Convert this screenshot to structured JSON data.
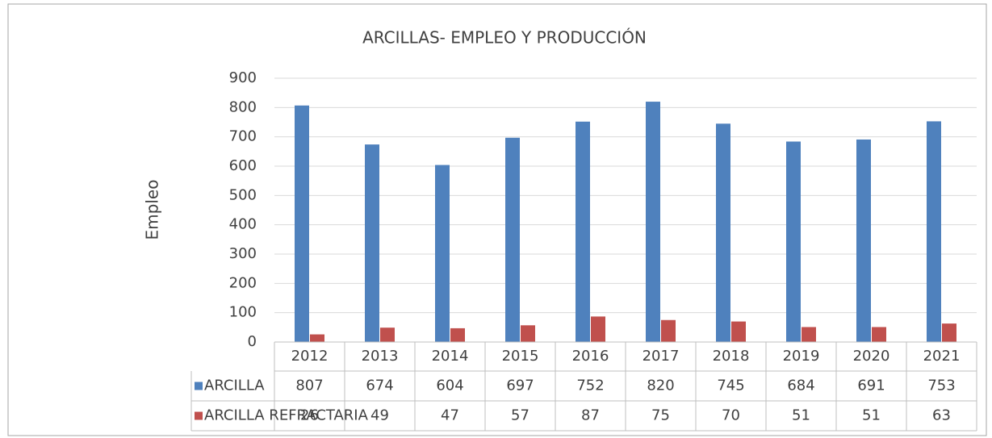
{
  "chart_data": {
    "type": "bar",
    "title": "ARCILLAS- EMPLEO  Y PRODUCCIÓN",
    "y_label": "Empleo",
    "categories": [
      "2012",
      "2013",
      "2014",
      "2015",
      "2016",
      "2017",
      "2018",
      "2019",
      "2020",
      "2021"
    ],
    "series": [
      {
        "name": "ARCILLA",
        "color": "#4f81bd",
        "values": [
          807,
          674,
          604,
          697,
          752,
          820,
          745,
          684,
          691,
          753
        ]
      },
      {
        "name": "ARCILLA REFRACTARIA",
        "color": "#c0504d",
        "values": [
          26,
          49,
          47,
          57,
          87,
          75,
          70,
          51,
          51,
          63
        ]
      }
    ],
    "ylim": [
      0,
      900
    ],
    "yticks": [
      0,
      100,
      200,
      300,
      400,
      500,
      600,
      700,
      800,
      900
    ],
    "grid": true
  }
}
